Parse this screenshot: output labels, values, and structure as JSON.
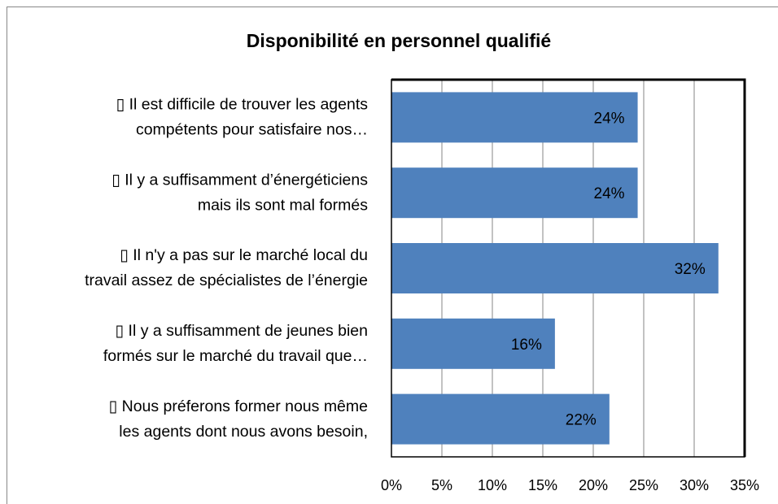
{
  "chart_data": {
    "type": "bar",
    "orientation": "horizontal",
    "title": "Disponibilité en personnel qualifié",
    "categories": [
      [
        "▯ Il est difficile de trouver les agents",
        "compétents pour satisfaire nos…"
      ],
      [
        "▯ Il y a suffisamment d’énergéticiens",
        "mais ils sont mal formés"
      ],
      [
        "▯ Il n'y a pas sur le marché local du",
        "travail assez de spécialistes de l’énergie"
      ],
      [
        "▯ Il y a suffisamment de  jeunes bien",
        "formés sur le marché du travail que…"
      ],
      [
        "▯ Nous préferons former nous même",
        "les agents dont nous avons besoin,"
      ]
    ],
    "values": [
      24.4,
      24.4,
      32.4,
      16.2,
      21.6
    ],
    "value_labels": [
      "24%",
      "24%",
      "32%",
      "16%",
      "22%"
    ],
    "color": "#4f81bd",
    "xlim": [
      0,
      35
    ],
    "xticks": [
      {
        "value": 0,
        "label": "0%"
      },
      {
        "value": 5,
        "label": "5%"
      },
      {
        "value": 10,
        "label": "10%"
      },
      {
        "value": 15,
        "label": "15%"
      },
      {
        "value": 20,
        "label": "20%"
      },
      {
        "value": 25,
        "label": "25%"
      },
      {
        "value": 30,
        "label": "30%"
      },
      {
        "value": 35,
        "label": "35%"
      }
    ],
    "grid": true
  }
}
